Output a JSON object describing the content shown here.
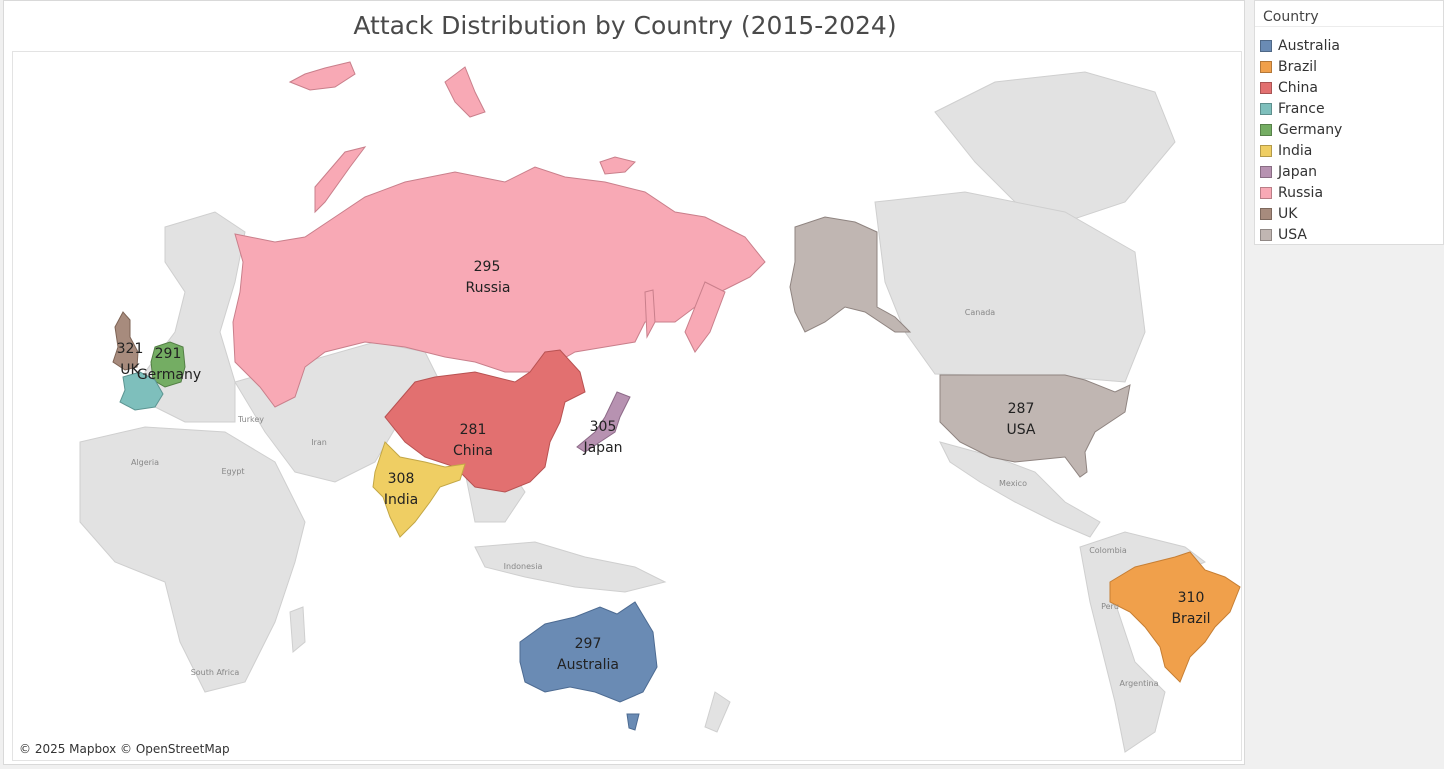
{
  "title": "Attack Distribution by Country (2015-2024)",
  "attribution": "© 2025 Mapbox © OpenStreetMap",
  "legend": {
    "title": "Country",
    "items": [
      {
        "label": "Australia",
        "color": "#6a8bb4"
      },
      {
        "label": "Brazil",
        "color": "#f0a04b"
      },
      {
        "label": "China",
        "color": "#e27070"
      },
      {
        "label": "France",
        "color": "#7ebfbc"
      },
      {
        "label": "Germany",
        "color": "#74ad63"
      },
      {
        "label": "India",
        "color": "#efce63"
      },
      {
        "label": "Japan",
        "color": "#b792b1"
      },
      {
        "label": "Russia",
        "color": "#f8a9b5"
      },
      {
        "label": "UK",
        "color": "#a78b7d"
      },
      {
        "label": "USA",
        "color": "#c0b6b2"
      }
    ]
  },
  "countries": [
    {
      "name": "Russia",
      "value": "295"
    },
    {
      "name": "UK",
      "value": "321"
    },
    {
      "name": "Germany",
      "value": "291"
    },
    {
      "name": "China",
      "value": "281"
    },
    {
      "name": "Japan",
      "value": "305"
    },
    {
      "name": "India",
      "value": "308"
    },
    {
      "name": "USA",
      "value": "287"
    },
    {
      "name": "Brazil",
      "value": "310"
    },
    {
      "name": "Australia",
      "value": "297"
    }
  ],
  "place_labels": [
    "Canada",
    "Mexico",
    "Colombia",
    "Peru",
    "Argentina",
    "Algeria",
    "Egypt",
    "Turkey",
    "Iran",
    "Indonesia",
    "South Africa"
  ]
}
